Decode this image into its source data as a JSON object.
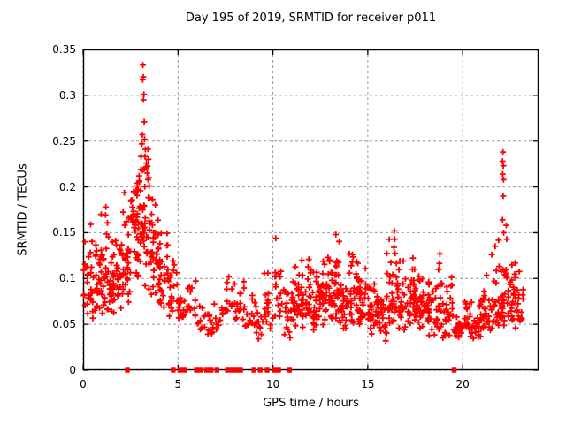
{
  "title": "Day 195 of 2019, SRMTID for receiver p011",
  "chart_data": {
    "type": "scatter",
    "title": "Day 195 of 2019, SRMTID for receiver p011",
    "xlabel": "GPS time / hours",
    "ylabel": "SRMTID / TECUs",
    "xlim": [
      0,
      24
    ],
    "ylim": [
      0,
      0.35
    ],
    "xticks": {
      "values": [
        0,
        5,
        10,
        15,
        20
      ],
      "labels": [
        "0",
        "5",
        "10",
        "15",
        "20"
      ]
    },
    "yticks": {
      "values": [
        0,
        0.05,
        0.1,
        0.15,
        0.2,
        0.25,
        0.3,
        0.35
      ],
      "labels": [
        "0",
        "0.05",
        "0.1",
        "0.15",
        "0.2",
        "0.25",
        "0.3",
        "0.35"
      ]
    },
    "grid": true,
    "legend": "none",
    "marker": "plus",
    "marker_color": "#ff0000",
    "grid_color": "#999999",
    "axis_color": "#000000",
    "background_color": "#ffffff",
    "seed": 20190195,
    "bins_key": [
      "x_start",
      "x_end",
      "count",
      "y_min",
      "y_max",
      "y_mode"
    ],
    "cluster_bins": [
      [
        0.0,
        0.5,
        26,
        0.04,
        0.16,
        0.085
      ],
      [
        0.5,
        1.0,
        30,
        0.045,
        0.155,
        0.09
      ],
      [
        1.0,
        1.5,
        32,
        0.05,
        0.185,
        0.1
      ],
      [
        1.5,
        2.0,
        34,
        0.055,
        0.19,
        0.11
      ],
      [
        2.0,
        2.5,
        36,
        0.06,
        0.2,
        0.125
      ],
      [
        2.5,
        3.0,
        40,
        0.08,
        0.24,
        0.15
      ],
      [
        3.0,
        3.5,
        42,
        0.085,
        0.25,
        0.17
      ],
      [
        3.5,
        4.0,
        34,
        0.07,
        0.22,
        0.13
      ],
      [
        4.0,
        4.5,
        28,
        0.06,
        0.16,
        0.1
      ],
      [
        4.5,
        5.0,
        20,
        0.05,
        0.12,
        0.08
      ],
      [
        5.0,
        5.5,
        16,
        0.05,
        0.09,
        0.065
      ],
      [
        5.5,
        6.0,
        12,
        0.055,
        0.105,
        0.07
      ],
      [
        6.0,
        6.5,
        10,
        0.04,
        0.08,
        0.055
      ],
      [
        6.5,
        7.0,
        12,
        0.03,
        0.08,
        0.05
      ],
      [
        7.0,
        7.5,
        10,
        0.035,
        0.075,
        0.055
      ],
      [
        7.5,
        8.0,
        12,
        0.05,
        0.105,
        0.07
      ],
      [
        8.0,
        8.5,
        16,
        0.045,
        0.1,
        0.07
      ],
      [
        8.5,
        9.0,
        12,
        0.04,
        0.09,
        0.06
      ],
      [
        9.0,
        9.5,
        14,
        0.03,
        0.085,
        0.05
      ],
      [
        9.5,
        10.0,
        16,
        0.04,
        0.12,
        0.065
      ],
      [
        10.0,
        10.5,
        18,
        0.035,
        0.145,
        0.08
      ],
      [
        10.5,
        11.0,
        20,
        0.03,
        0.1,
        0.06
      ],
      [
        11.0,
        11.5,
        26,
        0.04,
        0.115,
        0.07
      ],
      [
        11.5,
        12.0,
        30,
        0.04,
        0.13,
        0.075
      ],
      [
        12.0,
        12.5,
        30,
        0.035,
        0.12,
        0.07
      ],
      [
        12.5,
        13.0,
        32,
        0.045,
        0.135,
        0.08
      ],
      [
        13.0,
        13.5,
        34,
        0.05,
        0.155,
        0.085
      ],
      [
        13.5,
        14.0,
        30,
        0.04,
        0.125,
        0.075
      ],
      [
        14.0,
        14.5,
        30,
        0.04,
        0.145,
        0.075
      ],
      [
        14.5,
        15.0,
        30,
        0.04,
        0.13,
        0.072
      ],
      [
        15.0,
        15.5,
        30,
        0.035,
        0.1,
        0.065
      ],
      [
        15.5,
        16.0,
        26,
        0.03,
        0.09,
        0.06
      ],
      [
        16.0,
        16.5,
        30,
        0.04,
        0.155,
        0.075
      ],
      [
        16.5,
        17.0,
        30,
        0.04,
        0.125,
        0.08
      ],
      [
        17.0,
        17.5,
        30,
        0.045,
        0.135,
        0.08
      ],
      [
        17.5,
        18.0,
        30,
        0.04,
        0.12,
        0.07
      ],
      [
        18.0,
        18.5,
        28,
        0.035,
        0.11,
        0.065
      ],
      [
        18.5,
        19.0,
        26,
        0.03,
        0.13,
        0.06
      ],
      [
        19.0,
        19.5,
        24,
        0.035,
        0.11,
        0.058
      ],
      [
        19.5,
        20.0,
        22,
        0.03,
        0.08,
        0.05
      ],
      [
        20.0,
        20.5,
        24,
        0.03,
        0.085,
        0.05
      ],
      [
        20.5,
        21.0,
        24,
        0.03,
        0.09,
        0.055
      ],
      [
        21.0,
        21.5,
        26,
        0.035,
        0.12,
        0.062
      ],
      [
        21.5,
        22.0,
        26,
        0.04,
        0.145,
        0.07
      ],
      [
        22.0,
        22.5,
        30,
        0.04,
        0.13,
        0.075
      ],
      [
        22.5,
        23.0,
        30,
        0.04,
        0.13,
        0.075
      ],
      [
        23.0,
        23.2,
        8,
        0.04,
        0.1,
        0.06
      ]
    ],
    "outlier_points": [
      [
        3.15,
        0.333
      ],
      [
        3.17,
        0.32
      ],
      [
        3.14,
        0.317
      ],
      [
        3.2,
        0.301
      ],
      [
        3.18,
        0.295
      ],
      [
        3.22,
        0.271
      ],
      [
        3.12,
        0.257
      ],
      [
        3.24,
        0.252
      ],
      [
        3.1,
        0.247
      ],
      [
        3.28,
        0.241
      ],
      [
        3.26,
        0.233
      ],
      [
        3.33,
        0.226
      ],
      [
        3.3,
        0.221
      ],
      [
        3.05,
        0.219
      ],
      [
        3.38,
        0.215
      ],
      [
        2.95,
        0.212
      ],
      [
        3.42,
        0.208
      ],
      [
        2.86,
        0.204
      ],
      [
        3.48,
        0.201
      ],
      [
        2.78,
        0.196
      ],
      [
        22.12,
        0.238
      ],
      [
        22.1,
        0.228
      ],
      [
        22.14,
        0.223
      ],
      [
        22.11,
        0.214
      ],
      [
        22.15,
        0.208
      ],
      [
        22.13,
        0.19
      ],
      [
        22.1,
        0.164
      ],
      [
        22.16,
        0.15
      ],
      [
        22.3,
        0.158
      ],
      [
        22.32,
        0.143
      ],
      [
        16.4,
        0.152
      ],
      [
        16.42,
        0.143
      ],
      [
        16.38,
        0.134
      ],
      [
        13.32,
        0.148
      ],
      [
        10.15,
        0.144
      ],
      [
        18.8,
        0.127
      ],
      [
        0.95,
        0.17
      ],
      [
        1.2,
        0.178
      ]
    ],
    "zero_markers_x": [
      2.33,
      4.75,
      5.1,
      5.35,
      5.97,
      6.2,
      6.5,
      6.75,
      7.05,
      7.6,
      7.85,
      8.1,
      8.3,
      9.0,
      9.33,
      9.7,
      10.1,
      10.3,
      10.87,
      19.55
    ]
  }
}
